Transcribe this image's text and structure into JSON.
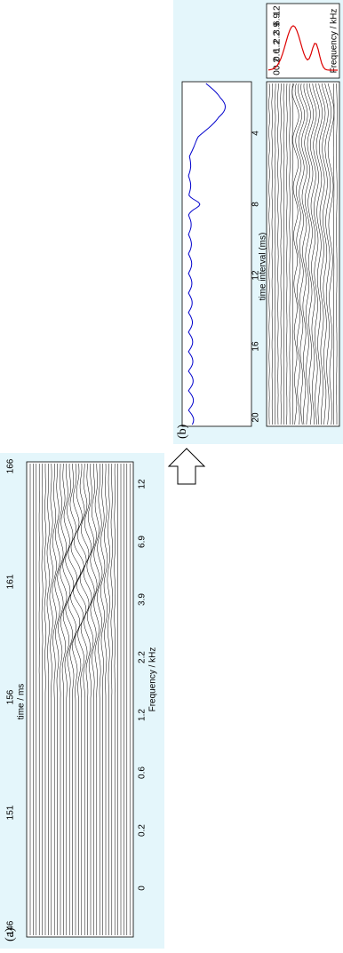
{
  "panel_a": {
    "label": "(a)",
    "x_label": "time / ms",
    "y_label": "Frequency / kHz",
    "time_ticks": [
      "146",
      "151",
      "156",
      "161",
      "166"
    ],
    "freq_ticks": [
      "12",
      "6.9",
      "3.9",
      "2.2",
      "1.2",
      "0.6",
      "0.2",
      "0"
    ]
  },
  "panel_b": {
    "label": "(b)",
    "x_label": "time interval (ms)",
    "y_label": "Frequency / kHz",
    "time_ticks": [
      "20",
      "16",
      "12",
      "8",
      "4"
    ],
    "freq_ticks": [
      "12",
      "6.9",
      "3.9",
      "2.2",
      "1.2",
      "0.6",
      "0.2",
      "0"
    ]
  }
}
